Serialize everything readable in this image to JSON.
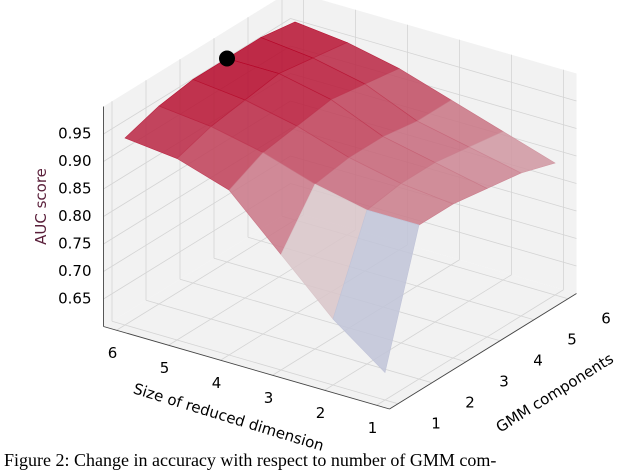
{
  "chart_data": {
    "type": "surface3d",
    "xlabel": "GMM components",
    "ylabel": "Size of reduced dimension",
    "zlabel": "AUC score",
    "x": [
      1,
      2,
      3,
      4,
      5,
      6
    ],
    "y": [
      1,
      2,
      3,
      4,
      5,
      6
    ],
    "z": [
      [
        0.65,
        0.88,
        0.88,
        0.87,
        0.86,
        0.84
      ],
      [
        0.72,
        0.88,
        0.89,
        0.89,
        0.88,
        0.87
      ],
      [
        0.81,
        0.9,
        0.91,
        0.91,
        0.9,
        0.9
      ],
      [
        0.9,
        0.93,
        0.94,
        0.95,
        0.94,
        0.93
      ],
      [
        0.93,
        0.95,
        0.96,
        0.97,
        0.96,
        0.95
      ],
      [
        0.94,
        0.96,
        0.97,
        0.97,
        0.97,
        0.96
      ]
    ],
    "xlim": [
      0.75,
      6.25
    ],
    "ylim": [
      0.75,
      6.25
    ],
    "zlim": [
      0.6,
      1.0
    ],
    "xticks": [
      1,
      2,
      3,
      4,
      5,
      6
    ],
    "yticks": [
      1,
      2,
      3,
      4,
      5,
      6
    ],
    "zticks": [
      {
        "value": 0.65,
        "label": "0.65"
      },
      {
        "value": 0.7,
        "label": "0.70"
      },
      {
        "value": 0.75,
        "label": "0.75"
      },
      {
        "value": 0.8,
        "label": "0.80"
      },
      {
        "value": 0.85,
        "label": "0.85"
      },
      {
        "value": 0.9,
        "label": "0.90"
      },
      {
        "value": 0.95,
        "label": "0.95"
      }
    ],
    "colormap": "coolwarm",
    "grid": true,
    "highlight": {
      "x": 4,
      "y": 6,
      "z": 0.97,
      "color": "#000000"
    }
  },
  "caption": "Figure 2: Change in accuracy with respect to number of GMM com-"
}
